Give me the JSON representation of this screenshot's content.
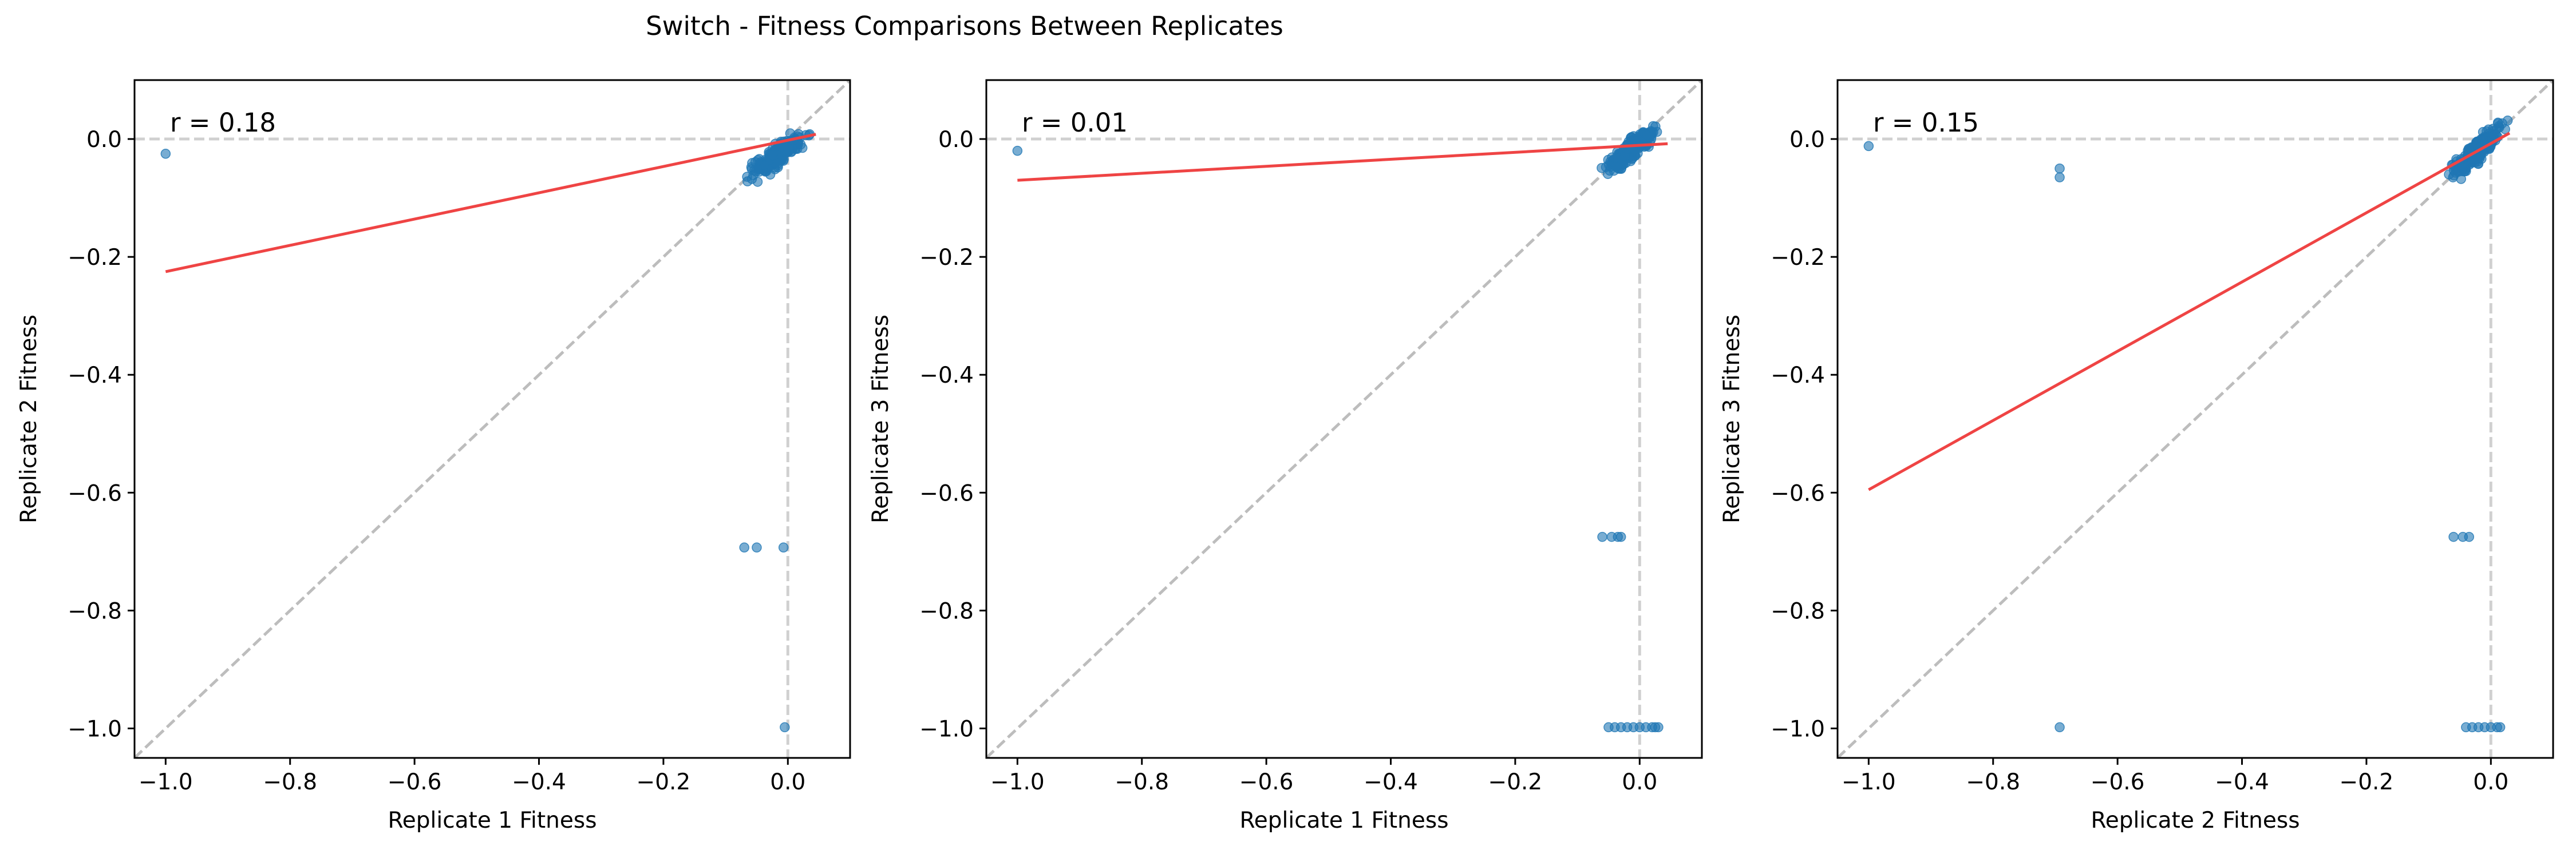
{
  "figure": {
    "title": "Switch - Fitness Comparisons Between Replicates"
  },
  "chart_data": [
    {
      "type": "scatter",
      "xlabel": "Replicate 1 Fitness",
      "ylabel": "Replicate 2 Fitness",
      "xlim": [
        -1.05,
        0.1
      ],
      "ylim": [
        -1.05,
        0.1
      ],
      "xticks": [
        -1.0,
        -0.8,
        -0.6,
        -0.4,
        -0.2,
        0.0
      ],
      "yticks": [
        -1.0,
        -0.8,
        -0.6,
        -0.4,
        -0.2,
        0.0
      ],
      "tick_labels_x": [
        "−1.0",
        "−0.8",
        "−0.6",
        "−0.4",
        "−0.2",
        "0.0"
      ],
      "tick_labels_y": [
        "−1.0",
        "−0.8",
        "−0.6",
        "−0.4",
        "−0.2",
        "0.0"
      ],
      "annotation": "r = 0.18",
      "fit_line": [
        [
          -1.0,
          -0.225
        ],
        [
          0.045,
          0.008
        ]
      ],
      "reference_lines": {
        "diagonal": true,
        "x_zero": true,
        "y_zero": true
      },
      "outliers": [
        [
          -1.0,
          -0.025
        ],
        [
          -0.07,
          -0.693
        ],
        [
          -0.05,
          -0.693
        ],
        [
          -0.007,
          -0.693
        ],
        [
          -0.005,
          -0.998
        ]
      ],
      "cluster": {
        "x_range": [
          -0.085,
          0.05
        ],
        "y_range": [
          -0.085,
          0.03
        ],
        "correlated": true,
        "count": 220
      }
    },
    {
      "type": "scatter",
      "xlabel": "Replicate 1 Fitness",
      "ylabel": "Replicate 3 Fitness",
      "xlim": [
        -1.05,
        0.1
      ],
      "ylim": [
        -1.05,
        0.1
      ],
      "xticks": [
        -1.0,
        -0.8,
        -0.6,
        -0.4,
        -0.2,
        0.0
      ],
      "yticks": [
        -1.0,
        -0.8,
        -0.6,
        -0.4,
        -0.2,
        0.0
      ],
      "tick_labels_x": [
        "−1.0",
        "−0.8",
        "−0.6",
        "−0.4",
        "−0.2",
        "0.0"
      ],
      "tick_labels_y": [
        "−1.0",
        "−0.8",
        "−0.6",
        "−0.4",
        "−0.2",
        "0.0"
      ],
      "annotation": "r = 0.01",
      "fit_line": [
        [
          -1.0,
          -0.07
        ],
        [
          0.045,
          -0.008
        ]
      ],
      "reference_lines": {
        "diagonal": true,
        "x_zero": true,
        "y_zero": true
      },
      "outliers": [
        [
          -1.0,
          -0.02
        ],
        [
          -0.06,
          -0.675
        ],
        [
          -0.045,
          -0.675
        ],
        [
          -0.035,
          -0.675
        ],
        [
          -0.03,
          -0.675
        ],
        [
          -0.05,
          -0.998
        ],
        [
          -0.04,
          -0.998
        ],
        [
          -0.03,
          -0.998
        ],
        [
          -0.02,
          -0.998
        ],
        [
          -0.01,
          -0.998
        ],
        [
          0.0,
          -0.998
        ],
        [
          0.01,
          -0.998
        ],
        [
          0.02,
          -0.998
        ],
        [
          0.025,
          -0.998
        ],
        [
          0.03,
          -0.998
        ]
      ],
      "cluster": {
        "x_range": [
          -0.08,
          0.05
        ],
        "y_range": [
          -0.08,
          0.045
        ],
        "correlated": true,
        "count": 240
      }
    },
    {
      "type": "scatter",
      "xlabel": "Replicate 2 Fitness",
      "ylabel": "Replicate 3 Fitness",
      "xlim": [
        -1.05,
        0.1
      ],
      "ylim": [
        -1.05,
        0.1
      ],
      "xticks": [
        -1.0,
        -0.8,
        -0.6,
        -0.4,
        -0.2,
        0.0
      ],
      "yticks": [
        -1.0,
        -0.8,
        -0.6,
        -0.4,
        -0.2,
        0.0
      ],
      "tick_labels_x": [
        "−1.0",
        "−0.8",
        "−0.6",
        "−0.4",
        "−0.2",
        "0.0"
      ],
      "tick_labels_y": [
        "−1.0",
        "−0.8",
        "−0.6",
        "−0.4",
        "−0.2",
        "0.0"
      ],
      "annotation": "r = 0.15",
      "fit_line": [
        [
          -1.0,
          -0.595
        ],
        [
          0.03,
          0.01
        ]
      ],
      "reference_lines": {
        "diagonal": true,
        "x_zero": true,
        "y_zero": true
      },
      "outliers": [
        [
          -1.0,
          -0.012
        ],
        [
          -0.693,
          -0.05
        ],
        [
          -0.693,
          -0.065
        ],
        [
          -0.693,
          -0.998
        ],
        [
          -0.06,
          -0.675
        ],
        [
          -0.045,
          -0.675
        ],
        [
          -0.035,
          -0.675
        ],
        [
          -0.04,
          -0.998
        ],
        [
          -0.03,
          -0.998
        ],
        [
          -0.02,
          -0.998
        ],
        [
          -0.01,
          -0.998
        ],
        [
          0.0,
          -0.998
        ],
        [
          0.01,
          -0.998
        ],
        [
          0.015,
          -0.998
        ]
      ],
      "cluster": {
        "x_range": [
          -0.08,
          0.04
        ],
        "y_range": [
          -0.08,
          0.045
        ],
        "correlated": true,
        "count": 240
      }
    }
  ],
  "colors": {
    "points": "#1f77b4",
    "fit": "#ef4444",
    "reference": "#bdbdbd",
    "axis": "#000000"
  }
}
